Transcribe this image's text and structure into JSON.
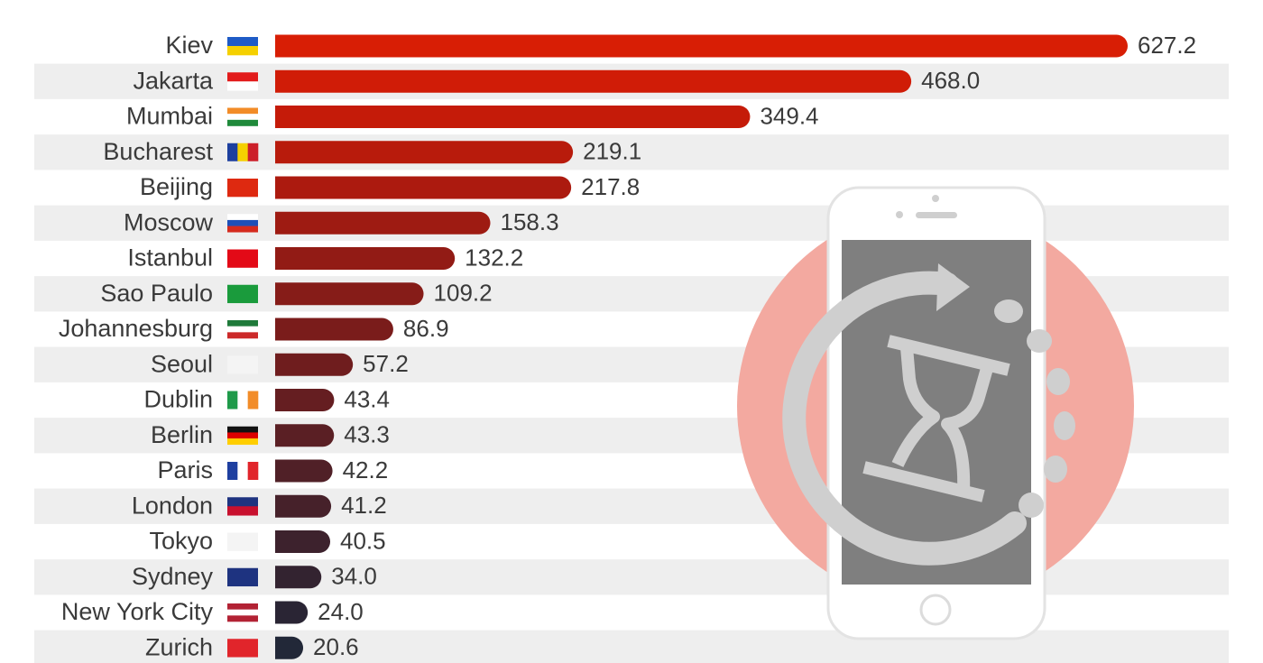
{
  "chart_data": {
    "type": "hbar",
    "categories": [
      "Kiev",
      "Jakarta",
      "Mumbai",
      "Bucharest",
      "Beijing",
      "Moscow",
      "Istanbul",
      "Sao Paulo",
      "Johannesburg",
      "Seoul",
      "Dublin",
      "Berlin",
      "Paris",
      "London",
      "Tokyo",
      "Sydney",
      "New York City",
      "Zurich"
    ],
    "values": [
      627.2,
      468.0,
      349.4,
      219.1,
      217.8,
      158.3,
      132.2,
      109.2,
      86.9,
      57.2,
      43.4,
      43.3,
      42.2,
      41.2,
      40.5,
      34.0,
      24.0,
      20.6
    ],
    "value_labels": [
      "627.2",
      "468.0",
      "349.4",
      "219.1",
      "217.8",
      "158.3",
      "132.2",
      "109.2",
      "86.9",
      "57.2",
      "43.4",
      "43.3",
      "42.2",
      "41.2",
      "40.5",
      "34.0",
      "24.0",
      "20.6"
    ],
    "colors": [
      "#d81e05",
      "#d01c07",
      "#c51b09",
      "#b81b0c",
      "#ac1a0f",
      "#9e1b12",
      "#921b15",
      "#861c18",
      "#7a1c1b",
      "#6f1d1e",
      "#651e21",
      "#5a1f24",
      "#502027",
      "#46212a",
      "#3d222d",
      "#332330",
      "#2a2534",
      "#222838"
    ]
  }
}
